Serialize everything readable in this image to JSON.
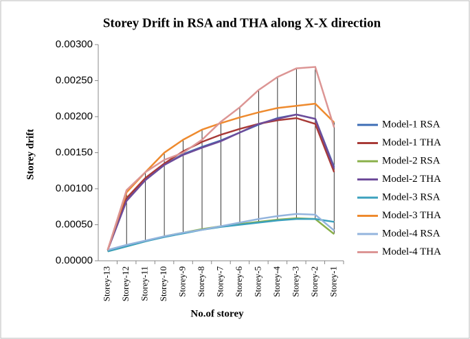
{
  "chart_data": {
    "type": "line",
    "title": "Storey Drift in RSA and THA along X-X direction",
    "x_label": "No.of storey",
    "y_label": "Storey drift",
    "categories": [
      "Storey-13",
      "Storey-12",
      "Storey-11",
      "Storey-10",
      "Storey-9",
      "Storey-8",
      "Storey-7",
      "Storey-6",
      "Storey-5",
      "Storey-4",
      "Storey-3",
      "Storey-2",
      "Storey-1"
    ],
    "ylim": [
      0,
      0.003
    ],
    "yticks": [
      {
        "value": 0,
        "label": "0.00000"
      },
      {
        "value": 0.0005,
        "label": "0.00050"
      },
      {
        "value": 0.001,
        "label": "0.00100"
      },
      {
        "value": 0.0015,
        "label": "0.00150"
      },
      {
        "value": 0.002,
        "label": "0.00200"
      },
      {
        "value": 0.0025,
        "label": "0.00250"
      },
      {
        "value": 0.003,
        "label": "0.00300"
      }
    ],
    "series": [
      {
        "name": "Model-1 RSA",
        "color": "#3c6db5",
        "values": [
          0.00015,
          0.00085,
          0.00112,
          0.00133,
          0.00148,
          0.00158,
          0.00167,
          0.00178,
          0.00189,
          0.00198,
          0.00203,
          0.00197,
          0.0013
        ]
      },
      {
        "name": "Model-1 THA",
        "color": "#a83a37",
        "values": [
          0.00015,
          0.00087,
          0.00115,
          0.00135,
          0.00152,
          0.00165,
          0.00175,
          0.00183,
          0.0019,
          0.00195,
          0.00198,
          0.0019,
          0.00123
        ]
      },
      {
        "name": "Model-2 RSA",
        "color": "#8ab04a",
        "values": [
          0.00013,
          0.0002,
          0.00027,
          0.00034,
          0.00039,
          0.00044,
          0.00048,
          0.00051,
          0.00054,
          0.00057,
          0.00059,
          0.00058,
          0.00037
        ]
      },
      {
        "name": "Model-2 THA",
        "color": "#6e4c9a",
        "values": [
          0.00015,
          0.00083,
          0.00112,
          0.00133,
          0.00147,
          0.00157,
          0.00166,
          0.00178,
          0.0019,
          0.00197,
          0.00203,
          0.00197,
          0.00128
        ]
      },
      {
        "name": "Model-3 RSA",
        "color": "#3ba0bd",
        "values": [
          0.00013,
          0.0002,
          0.00027,
          0.00033,
          0.00038,
          0.00043,
          0.00047,
          0.0005,
          0.00053,
          0.00056,
          0.00058,
          0.00058,
          0.00054
        ]
      },
      {
        "name": "Model-3 THA",
        "color": "#ee8a2e",
        "values": [
          0.00015,
          0.00095,
          0.00123,
          0.0015,
          0.00168,
          0.00182,
          0.00191,
          0.00199,
          0.00206,
          0.00212,
          0.00215,
          0.00218,
          0.00192
        ]
      },
      {
        "name": "Model-4 RSA",
        "color": "#93b4dd",
        "values": [
          0.00015,
          0.00022,
          0.00028,
          0.00034,
          0.00039,
          0.00043,
          0.00048,
          0.00053,
          0.00058,
          0.00062,
          0.00065,
          0.00064,
          0.00042
        ]
      },
      {
        "name": "Model-4 THA",
        "color": "#dc9594",
        "values": [
          0.00015,
          0.00098,
          0.00123,
          0.0014,
          0.0015,
          0.00168,
          0.00193,
          0.00213,
          0.00237,
          0.00255,
          0.00267,
          0.00269,
          0.00185
        ]
      }
    ]
  }
}
